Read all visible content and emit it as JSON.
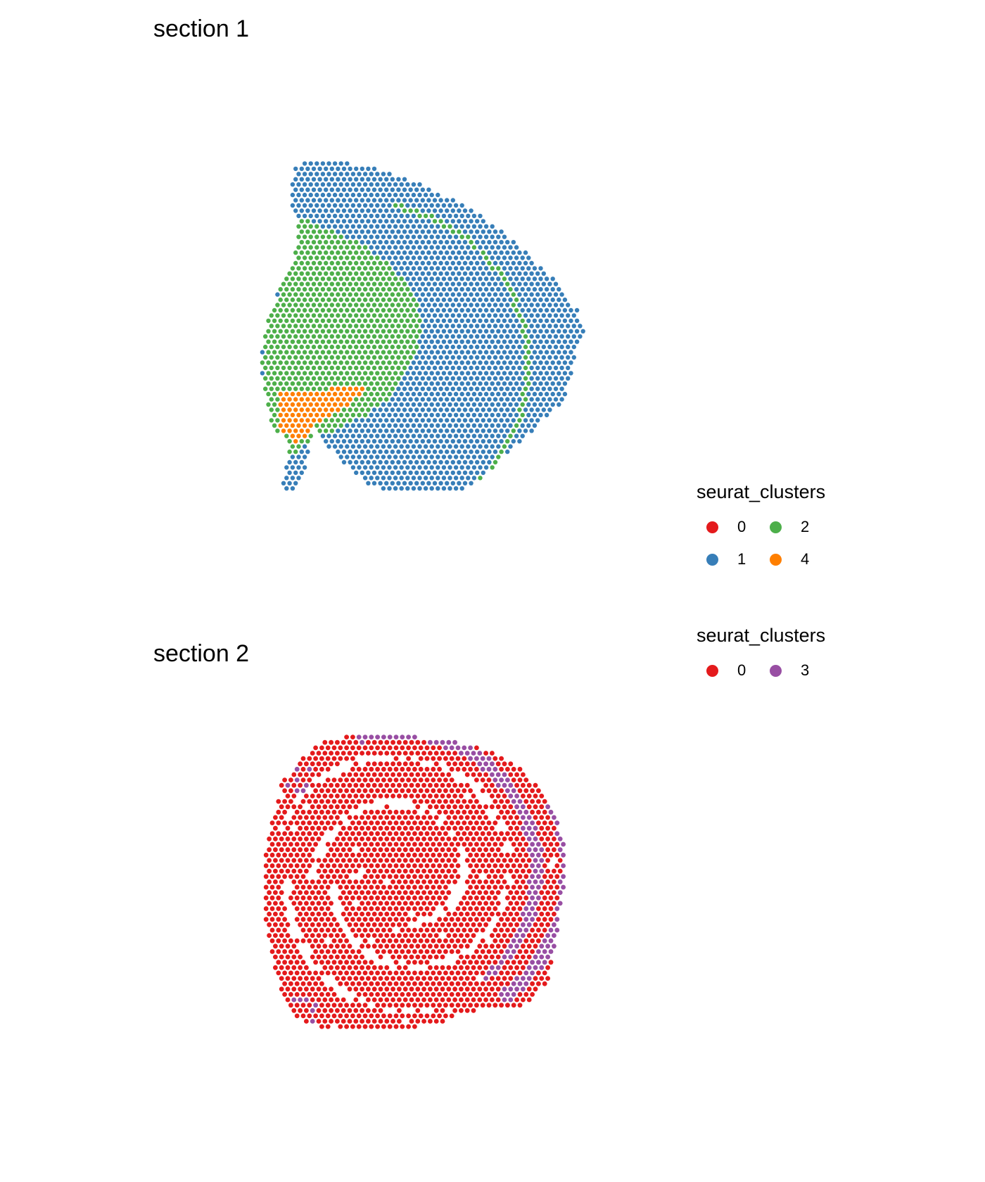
{
  "chart_data": [
    {
      "type": "scatter",
      "title": "section 1",
      "legend_title": "seurat_clusters",
      "legend_placement": "right",
      "grid": false,
      "axes": false,
      "series": [
        {
          "name": "0",
          "color": "#E41A1C"
        },
        {
          "name": "1",
          "color": "#377EB8"
        },
        {
          "name": "2",
          "color": "#4DAF4A"
        },
        {
          "name": "4",
          "color": "#FF7F00"
        }
      ]
    },
    {
      "type": "scatter",
      "title": "section 2",
      "legend_title": "seurat_clusters",
      "legend_placement": "right",
      "grid": false,
      "axes": false,
      "series": [
        {
          "name": "0",
          "color": "#E41A1C"
        },
        {
          "name": "3",
          "color": "#984EA3"
        }
      ]
    }
  ]
}
